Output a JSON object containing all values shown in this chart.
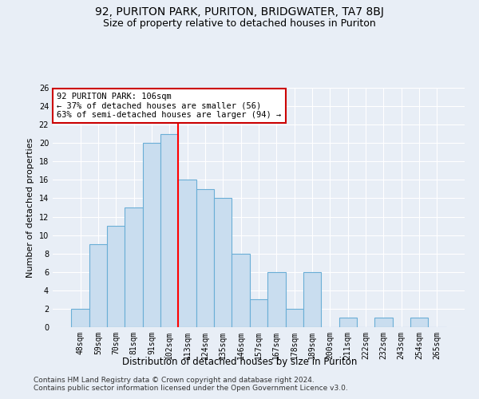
{
  "title1": "92, PURITON PARK, PURITON, BRIDGWATER, TA7 8BJ",
  "title2": "Size of property relative to detached houses in Puriton",
  "xlabel": "Distribution of detached houses by size in Puriton",
  "ylabel": "Number of detached properties",
  "categories": [
    "48sqm",
    "59sqm",
    "70sqm",
    "81sqm",
    "91sqm",
    "102sqm",
    "113sqm",
    "124sqm",
    "135sqm",
    "146sqm",
    "157sqm",
    "167sqm",
    "178sqm",
    "189sqm",
    "200sqm",
    "211sqm",
    "222sqm",
    "232sqm",
    "243sqm",
    "254sqm",
    "265sqm"
  ],
  "values": [
    2,
    9,
    11,
    13,
    20,
    21,
    16,
    15,
    14,
    8,
    3,
    6,
    2,
    6,
    0,
    1,
    0,
    1,
    0,
    1,
    0
  ],
  "bar_color": "#c9ddef",
  "bar_edge_color": "#6aaed6",
  "redline_index": 5,
  "annotation_text": "92 PURITON PARK: 106sqm\n← 37% of detached houses are smaller (56)\n63% of semi-detached houses are larger (94) →",
  "annotation_box_color": "#ffffff",
  "annotation_box_edge": "#cc0000",
  "ylim": [
    0,
    26
  ],
  "yticks": [
    0,
    2,
    4,
    6,
    8,
    10,
    12,
    14,
    16,
    18,
    20,
    22,
    24,
    26
  ],
  "footer1": "Contains HM Land Registry data © Crown copyright and database right 2024.",
  "footer2": "Contains public sector information licensed under the Open Government Licence v3.0.",
  "bg_color": "#e8eef6",
  "plot_bg_color": "#e8eef6",
  "grid_color": "#ffffff",
  "title1_fontsize": 10,
  "title2_fontsize": 9,
  "xlabel_fontsize": 8.5,
  "ylabel_fontsize": 8,
  "tick_fontsize": 7,
  "footer_fontsize": 6.5,
  "annot_fontsize": 7.5
}
